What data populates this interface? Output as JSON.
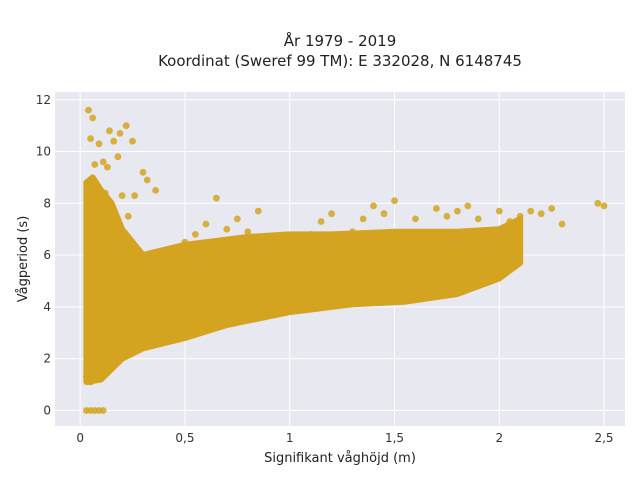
{
  "chart_data": {
    "type": "scatter",
    "title_lines": [
      "År 1979 - 2019",
      "Koordinat (Sweref 99 TM): E 332028, N 6148745"
    ],
    "xlabel": "Signifikant våghöjd (m)",
    "ylabel": "Vågperiod (s)",
    "xlim": [
      -0.12,
      2.6
    ],
    "ylim": [
      -0.6,
      12.3
    ],
    "x_ticks": [
      0,
      0.5,
      1,
      1.5,
      2,
      2.5
    ],
    "x_tick_labels": [
      "0",
      "0,5",
      "1",
      "1,5",
      "2",
      "2,5"
    ],
    "y_ticks": [
      0,
      2,
      4,
      6,
      8,
      10,
      12
    ],
    "y_tick_labels": [
      "0",
      "2",
      "4",
      "6",
      "8",
      "10",
      "12"
    ],
    "grid": true,
    "marker_color": "#D4A420",
    "plot_background": "#E8E8F0",
    "series": [
      {
        "values_xy": [
          [
            0.03,
            0
          ],
          [
            0.05,
            0
          ],
          [
            0.07,
            0
          ],
          [
            0.09,
            0
          ],
          [
            0.11,
            0
          ],
          [
            0.03,
            1.3
          ],
          [
            0.05,
            1.1
          ],
          [
            0.08,
            1.2
          ],
          [
            0.1,
            1.3
          ],
          [
            0.12,
            1.6
          ],
          [
            0.04,
            2.5
          ],
          [
            0.06,
            3.5
          ],
          [
            0.08,
            4.5
          ],
          [
            0.1,
            5.5
          ],
          [
            0.05,
            6.0
          ],
          [
            0.04,
            7.0
          ],
          [
            0.06,
            8.0
          ],
          [
            0.05,
            8.9
          ],
          [
            0.07,
            9.5
          ],
          [
            0.05,
            10.5
          ],
          [
            0.04,
            11.6
          ],
          [
            0.06,
            11.3
          ],
          [
            0.09,
            10.3
          ],
          [
            0.11,
            9.6
          ],
          [
            0.13,
            9.4
          ],
          [
            0.14,
            10.8
          ],
          [
            0.16,
            10.4
          ],
          [
            0.18,
            9.8
          ],
          [
            0.19,
            10.7
          ],
          [
            0.22,
            11.0
          ],
          [
            0.25,
            10.4
          ],
          [
            0.12,
            8.4
          ],
          [
            0.15,
            7.8
          ],
          [
            0.18,
            7.2
          ],
          [
            0.2,
            8.3
          ],
          [
            0.23,
            7.5
          ],
          [
            0.26,
            8.3
          ],
          [
            0.3,
            9.2
          ],
          [
            0.32,
            8.9
          ],
          [
            0.36,
            8.5
          ],
          [
            0.15,
            2.2
          ],
          [
            0.2,
            2.5
          ],
          [
            0.25,
            3.1
          ],
          [
            0.3,
            3.5
          ],
          [
            0.35,
            2.7
          ],
          [
            0.4,
            3.3
          ],
          [
            0.45,
            2.9
          ],
          [
            0.5,
            3.0
          ],
          [
            0.55,
            3.2
          ],
          [
            0.6,
            3.4
          ],
          [
            0.15,
            4.8
          ],
          [
            0.2,
            5.2
          ],
          [
            0.25,
            4.5
          ],
          [
            0.3,
            5.5
          ],
          [
            0.35,
            6.0
          ],
          [
            0.4,
            5.8
          ],
          [
            0.45,
            6.2
          ],
          [
            0.5,
            6.5
          ],
          [
            0.55,
            6.8
          ],
          [
            0.6,
            7.2
          ],
          [
            0.65,
            8.2
          ],
          [
            0.7,
            7.0
          ],
          [
            0.75,
            7.4
          ],
          [
            0.8,
            6.9
          ],
          [
            0.85,
            7.7
          ],
          [
            0.7,
            3.6
          ],
          [
            0.8,
            3.7
          ],
          [
            0.9,
            3.9
          ],
          [
            1.0,
            4.0
          ],
          [
            1.1,
            4.2
          ],
          [
            0.9,
            5.5
          ],
          [
            1.0,
            6.3
          ],
          [
            1.1,
            6.8
          ],
          [
            1.15,
            7.3
          ],
          [
            1.2,
            7.6
          ],
          [
            1.2,
            4.3
          ],
          [
            1.3,
            4.4
          ],
          [
            1.4,
            4.6
          ],
          [
            1.5,
            4.3
          ],
          [
            1.55,
            4.7
          ],
          [
            1.3,
            6.9
          ],
          [
            1.35,
            7.4
          ],
          [
            1.4,
            7.9
          ],
          [
            1.45,
            7.6
          ],
          [
            1.5,
            8.1
          ],
          [
            1.6,
            4.4
          ],
          [
            1.65,
            4.8
          ],
          [
            1.7,
            5.2
          ],
          [
            1.75,
            4.9
          ],
          [
            1.8,
            5.3
          ],
          [
            1.6,
            7.4
          ],
          [
            1.7,
            7.8
          ],
          [
            1.75,
            7.5
          ],
          [
            1.8,
            7.7
          ],
          [
            1.85,
            7.9
          ],
          [
            1.9,
            5.4
          ],
          [
            1.95,
            5.7
          ],
          [
            2.0,
            5.9
          ],
          [
            2.05,
            6.1
          ],
          [
            1.9,
            7.4
          ],
          [
            2.0,
            7.7
          ],
          [
            2.05,
            7.3
          ],
          [
            2.1,
            7.5
          ],
          [
            2.15,
            7.7
          ],
          [
            2.2,
            7.6
          ],
          [
            2.25,
            7.8
          ],
          [
            2.3,
            7.2
          ],
          [
            2.47,
            8.0
          ],
          [
            2.5,
            7.9
          ]
        ]
      }
    ]
  }
}
